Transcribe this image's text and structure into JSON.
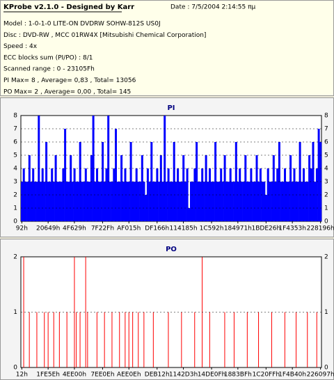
{
  "header": {
    "title": "KProbe v2.1.0 - Designed by Karr",
    "date": "Date : 7/5/2004 2:14:55 πμ"
  },
  "info": [
    "Model : 1-0-1-0 LITE-ON DVDRW SOHW-812S  US0J",
    "Disc : DVD-RW , MCC 01RW4X  [Mitsubishi Chemical Corporation]",
    "Speed : 4x",
    "ECC blocks sum (PI/PO) : 8/1",
    "Scanned range : 0 - 23105Fh",
    "PI Max= 8 , Average= 0,83 , Total= 13056",
    "PO Max= 2 , Average= 0,00 , Total= 145"
  ],
  "chart_data": [
    {
      "type": "bar",
      "title": "PI",
      "color": "#0000ff",
      "grid": true,
      "xlim": [
        0,
        160
      ],
      "ylim": [
        0,
        8
      ],
      "yticks": [
        0,
        1,
        2,
        3,
        4,
        5,
        6,
        7,
        8
      ],
      "xticks": [
        {
          "value": 0,
          "label": "92h"
        },
        {
          "value": 14,
          "label": "20649h"
        },
        {
          "value": 28,
          "label": "4F629h"
        },
        {
          "value": 43,
          "label": "7F22Fh"
        },
        {
          "value": 57,
          "label": "AF015h"
        },
        {
          "value": 72,
          "label": "DF166h"
        },
        {
          "value": 86,
          "label": "114185h"
        },
        {
          "value": 101,
          "label": "1C592h"
        },
        {
          "value": 115,
          "label": "184971h"
        },
        {
          "value": 130,
          "label": "1BDE26h"
        },
        {
          "value": 144,
          "label": "1F4353h"
        },
        {
          "value": 159,
          "label": "228196h"
        }
      ],
      "values": [
        3,
        4,
        3,
        3,
        5,
        3,
        4,
        3,
        3,
        8,
        3,
        4,
        3,
        6,
        3,
        3,
        4,
        3,
        5,
        3,
        3,
        3,
        4,
        7,
        3,
        3,
        5,
        3,
        4,
        3,
        3,
        6,
        3,
        3,
        4,
        3,
        3,
        5,
        8,
        3,
        4,
        3,
        3,
        6,
        3,
        4,
        8,
        3,
        3,
        4,
        7,
        3,
        3,
        5,
        3,
        4,
        3,
        3,
        6,
        3,
        3,
        4,
        3,
        3,
        5,
        3,
        2,
        4,
        3,
        6,
        3,
        3,
        4,
        3,
        5,
        3,
        8,
        3,
        4,
        3,
        3,
        6,
        3,
        4,
        3,
        3,
        5,
        3,
        4,
        1,
        3,
        3,
        4,
        6,
        3,
        3,
        4,
        3,
        5,
        3,
        4,
        3,
        3,
        6,
        3,
        3,
        4,
        3,
        5,
        3,
        3,
        4,
        3,
        3,
        6,
        3,
        4,
        3,
        3,
        5,
        3,
        3,
        4,
        3,
        3,
        5,
        3,
        4,
        3,
        3,
        2,
        4,
        3,
        3,
        5,
        3,
        4,
        6,
        3,
        3,
        4,
        3,
        3,
        5,
        3,
        4,
        3,
        3,
        6,
        3,
        4,
        3,
        3,
        5,
        4,
        6,
        3,
        4,
        7,
        6
      ]
    },
    {
      "type": "bar",
      "title": "PO",
      "color": "#ff0000",
      "grid": true,
      "xlim": [
        0,
        160
      ],
      "ylim": [
        0,
        2
      ],
      "yticks": [
        0,
        1,
        2
      ],
      "xticks": [
        {
          "value": 0,
          "label": "12h"
        },
        {
          "value": 14,
          "label": "1FE5Eh"
        },
        {
          "value": 28,
          "label": "4EE00h"
        },
        {
          "value": 43,
          "label": "7EE0Eh"
        },
        {
          "value": 57,
          "label": "AEE0Eh"
        },
        {
          "value": 72,
          "label": "DEB12h"
        },
        {
          "value": 86,
          "label": "1142D3h"
        },
        {
          "value": 101,
          "label": "14DE0Fh"
        },
        {
          "value": 115,
          "label": "1883BFh"
        },
        {
          "value": 130,
          "label": "1C20FFh"
        },
        {
          "value": 144,
          "label": "1F4B40h"
        },
        {
          "value": 159,
          "label": "226097h"
        }
      ],
      "values": [
        0,
        2,
        0,
        0,
        1,
        0,
        0,
        0,
        1,
        0,
        0,
        0,
        1,
        0,
        1,
        0,
        0,
        1,
        0,
        0,
        1,
        0,
        0,
        0,
        1,
        0,
        0,
        0,
        2,
        1,
        0,
        1,
        0,
        0,
        2,
        1,
        0,
        0,
        0,
        0,
        1,
        0,
        0,
        0,
        1,
        0,
        0,
        0,
        1,
        0,
        0,
        0,
        1,
        0,
        0,
        1,
        0,
        1,
        0,
        1,
        0,
        0,
        1,
        0,
        0,
        1,
        0,
        0,
        0,
        0,
        1,
        0,
        0,
        0,
        0,
        0,
        0,
        0,
        1,
        0,
        0,
        0,
        0,
        0,
        0,
        1,
        0,
        0,
        0,
        0,
        0,
        0,
        1,
        0,
        0,
        0,
        2,
        0,
        0,
        0,
        1,
        0,
        0,
        0,
        0,
        0,
        0,
        0,
        1,
        0,
        0,
        0,
        0,
        1,
        0,
        0,
        0,
        0,
        0,
        0,
        1,
        0,
        0,
        0,
        0,
        0,
        1,
        0,
        0,
        0,
        0,
        0,
        0,
        1,
        0,
        0,
        0,
        0,
        0,
        0,
        1,
        0,
        0,
        0,
        0,
        0,
        1,
        0,
        0,
        0,
        0,
        0,
        1,
        0,
        0,
        0,
        0,
        1,
        0,
        0
      ]
    }
  ]
}
